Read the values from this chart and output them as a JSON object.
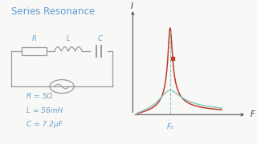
{
  "title": "Series Resonance",
  "title_color": "#5b9bd5",
  "title_fontsize": 8.5,
  "bg_color": "#f8f8f6",
  "params_text": [
    "R = 5Ω",
    "L = 56mH",
    "C = 7.2µF"
  ],
  "params_color": "#6aa0c8",
  "curve_high_color": "#c0392b",
  "curve_low_color": "#7ec8b8",
  "dashed_color": "#7ec8b8",
  "dot_color": "#c0392b",
  "axis_color": "#555555",
  "circuit_color": "#999999",
  "f0_label": "F₀",
  "f_label": "F",
  "I_label": "I"
}
